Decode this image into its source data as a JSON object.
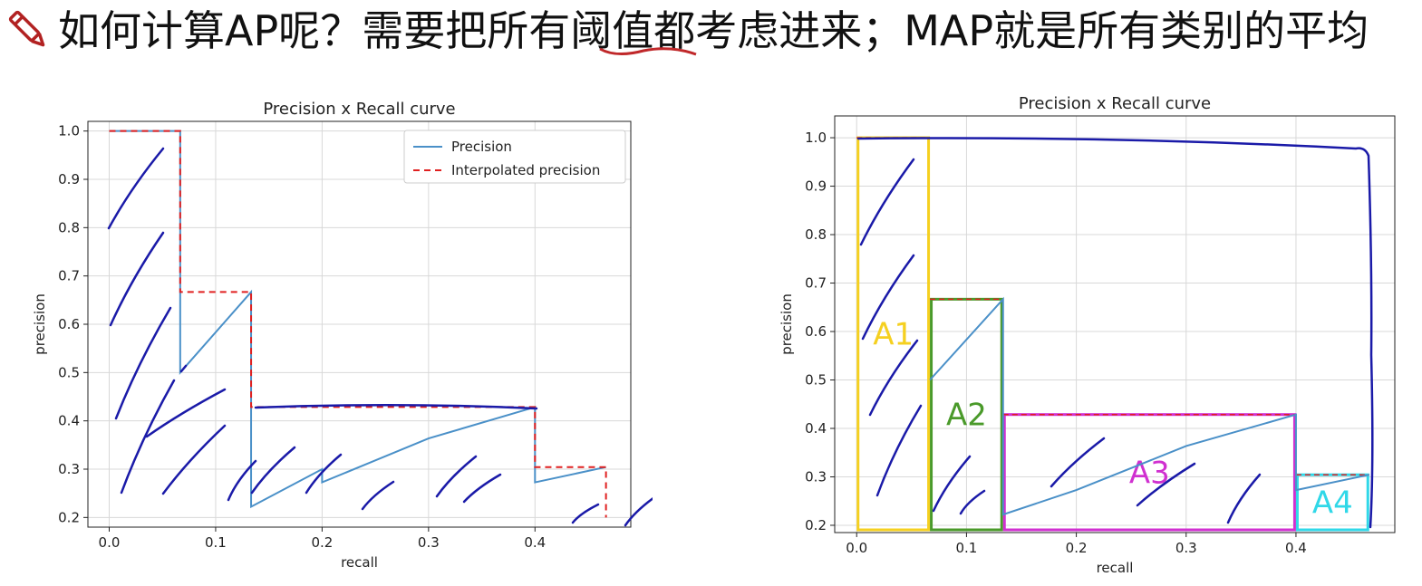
{
  "headline": {
    "text": "如何计算AP呢？需要把所有阈值都考虑进来；MAP就是所有类别的平均",
    "icon": "pencil-icon",
    "icon_color": "#b22222"
  },
  "chart_data": [
    {
      "type": "line",
      "title": "Precision x Recall curve",
      "xlabel": "recall",
      "ylabel": "precision",
      "xlim": [
        -0.02,
        0.49
      ],
      "ylim": [
        0.18,
        1.02
      ],
      "xticks": [
        "0.0",
        "0.1",
        "0.2",
        "0.3",
        "0.4"
      ],
      "yticks": [
        "0.2",
        "0.3",
        "0.4",
        "0.5",
        "0.6",
        "0.7",
        "0.8",
        "0.9",
        "1.0"
      ],
      "grid": true,
      "legend": "top-right",
      "series": [
        {
          "name": "Precision",
          "color": "#4a90c8",
          "style": "solid",
          "x": [
            0.0,
            0.0667,
            0.0667,
            0.1333,
            0.1333,
            0.2,
            0.2,
            0.3,
            0.4,
            0.4,
            0.4667
          ],
          "y": [
            1.0,
            1.0,
            0.5,
            0.6667,
            0.2222,
            0.3,
            0.2727,
            0.3636,
            0.4286,
            0.2727,
            0.3043
          ]
        },
        {
          "name": "Interpolated precision",
          "color": "#e02020",
          "style": "dashed",
          "x": [
            0.0,
            0.0667,
            0.0667,
            0.1333,
            0.1333,
            0.4,
            0.4,
            0.4667,
            0.4667
          ],
          "y": [
            1.0,
            1.0,
            0.6667,
            0.6667,
            0.4286,
            0.4286,
            0.3043,
            0.3043,
            0.2
          ]
        }
      ]
    },
    {
      "type": "line",
      "title": "Precision x Recall curve",
      "xlabel": "recall",
      "ylabel": "precision",
      "xlim": [
        -0.02,
        0.49
      ],
      "ylim": [
        0.185,
        1.045
      ],
      "xticks": [
        "0.0",
        "0.1",
        "0.2",
        "0.3",
        "0.4"
      ],
      "yticks": [
        "0.2",
        "0.3",
        "0.4",
        "0.5",
        "0.6",
        "0.7",
        "0.8",
        "0.9",
        "1.0"
      ],
      "grid": true,
      "series": [
        {
          "name": "Precision",
          "color": "#4a90c8",
          "style": "solid",
          "x": [
            0.0667,
            0.1333,
            0.1333,
            0.2,
            0.3,
            0.4,
            0.4,
            0.4667
          ],
          "y": [
            0.5,
            0.6667,
            0.2222,
            0.2727,
            0.3636,
            0.4286,
            0.2727,
            0.3043
          ]
        }
      ],
      "areas": [
        {
          "label": "A1",
          "x0": 0.0,
          "x1": 0.0667,
          "y": 1.0,
          "color": "#f5d020"
        },
        {
          "label": "A2",
          "x0": 0.0667,
          "x1": 0.1333,
          "y": 0.6667,
          "color": "#4a9a2a"
        },
        {
          "label": "A3",
          "x0": 0.1333,
          "x1": 0.4,
          "y": 0.4286,
          "color": "#d030d0"
        },
        {
          "label": "A4",
          "x0": 0.4,
          "x1": 0.4667,
          "y": 0.3043,
          "color": "#30d8e8"
        }
      ]
    }
  ],
  "ink_color": "#1a1aa8"
}
